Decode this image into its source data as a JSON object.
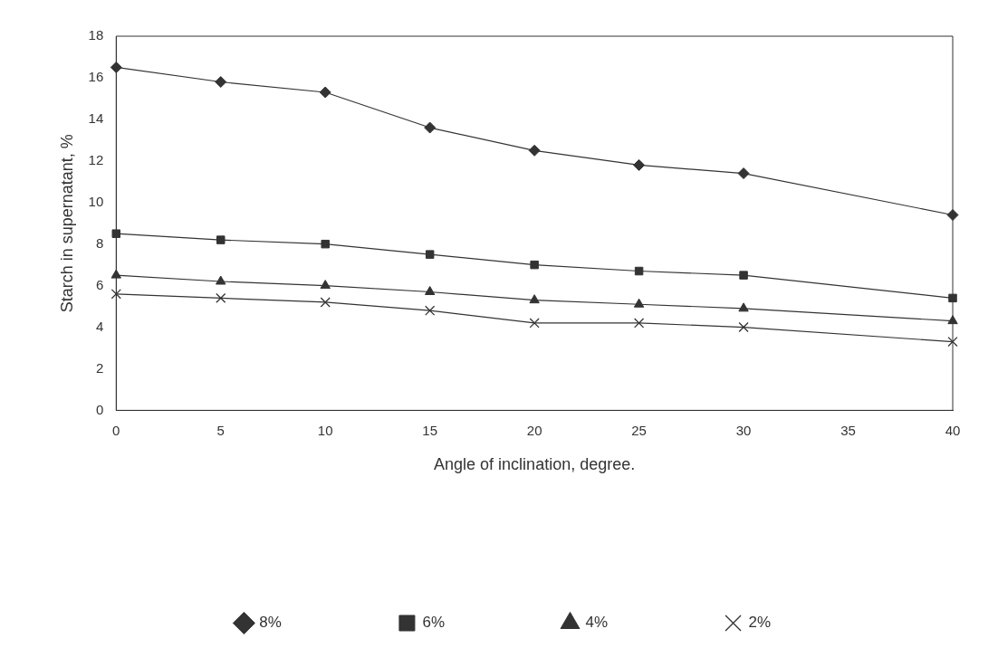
{
  "chart_data": {
    "type": "line",
    "xlabel": "Angle of inclination, degree.",
    "ylabel": "Starch in supernatant, %",
    "x": [
      0,
      5,
      10,
      15,
      20,
      25,
      30,
      40
    ],
    "series": [
      {
        "name": "8%",
        "color": "#333333",
        "marker": "diamond",
        "values": [
          16.5,
          15.8,
          15.3,
          13.6,
          12.5,
          11.8,
          11.4,
          9.4
        ]
      },
      {
        "name": "6%",
        "color": "#333333",
        "marker": "square",
        "values": [
          8.5,
          8.2,
          8.0,
          7.5,
          7.0,
          6.7,
          6.5,
          5.4
        ]
      },
      {
        "name": "4%",
        "color": "#333333",
        "marker": "triangle",
        "values": [
          6.5,
          6.2,
          6.0,
          5.7,
          5.3,
          5.1,
          4.9,
          4.3
        ]
      },
      {
        "name": "2%",
        "color": "#333333",
        "marker": "cross",
        "values": [
          5.6,
          5.4,
          5.2,
          4.8,
          4.2,
          4.2,
          4.0,
          3.3
        ]
      }
    ],
    "xlim": [
      0,
      40
    ],
    "xticks": [
      0,
      5,
      10,
      15,
      20,
      25,
      30,
      35,
      40
    ],
    "ylim": [
      0,
      18
    ],
    "yticks": [
      0,
      2,
      4,
      6,
      8,
      10,
      12,
      14,
      16,
      18
    ],
    "grid": false,
    "legend": "bottom",
    "line_style": "solid"
  }
}
